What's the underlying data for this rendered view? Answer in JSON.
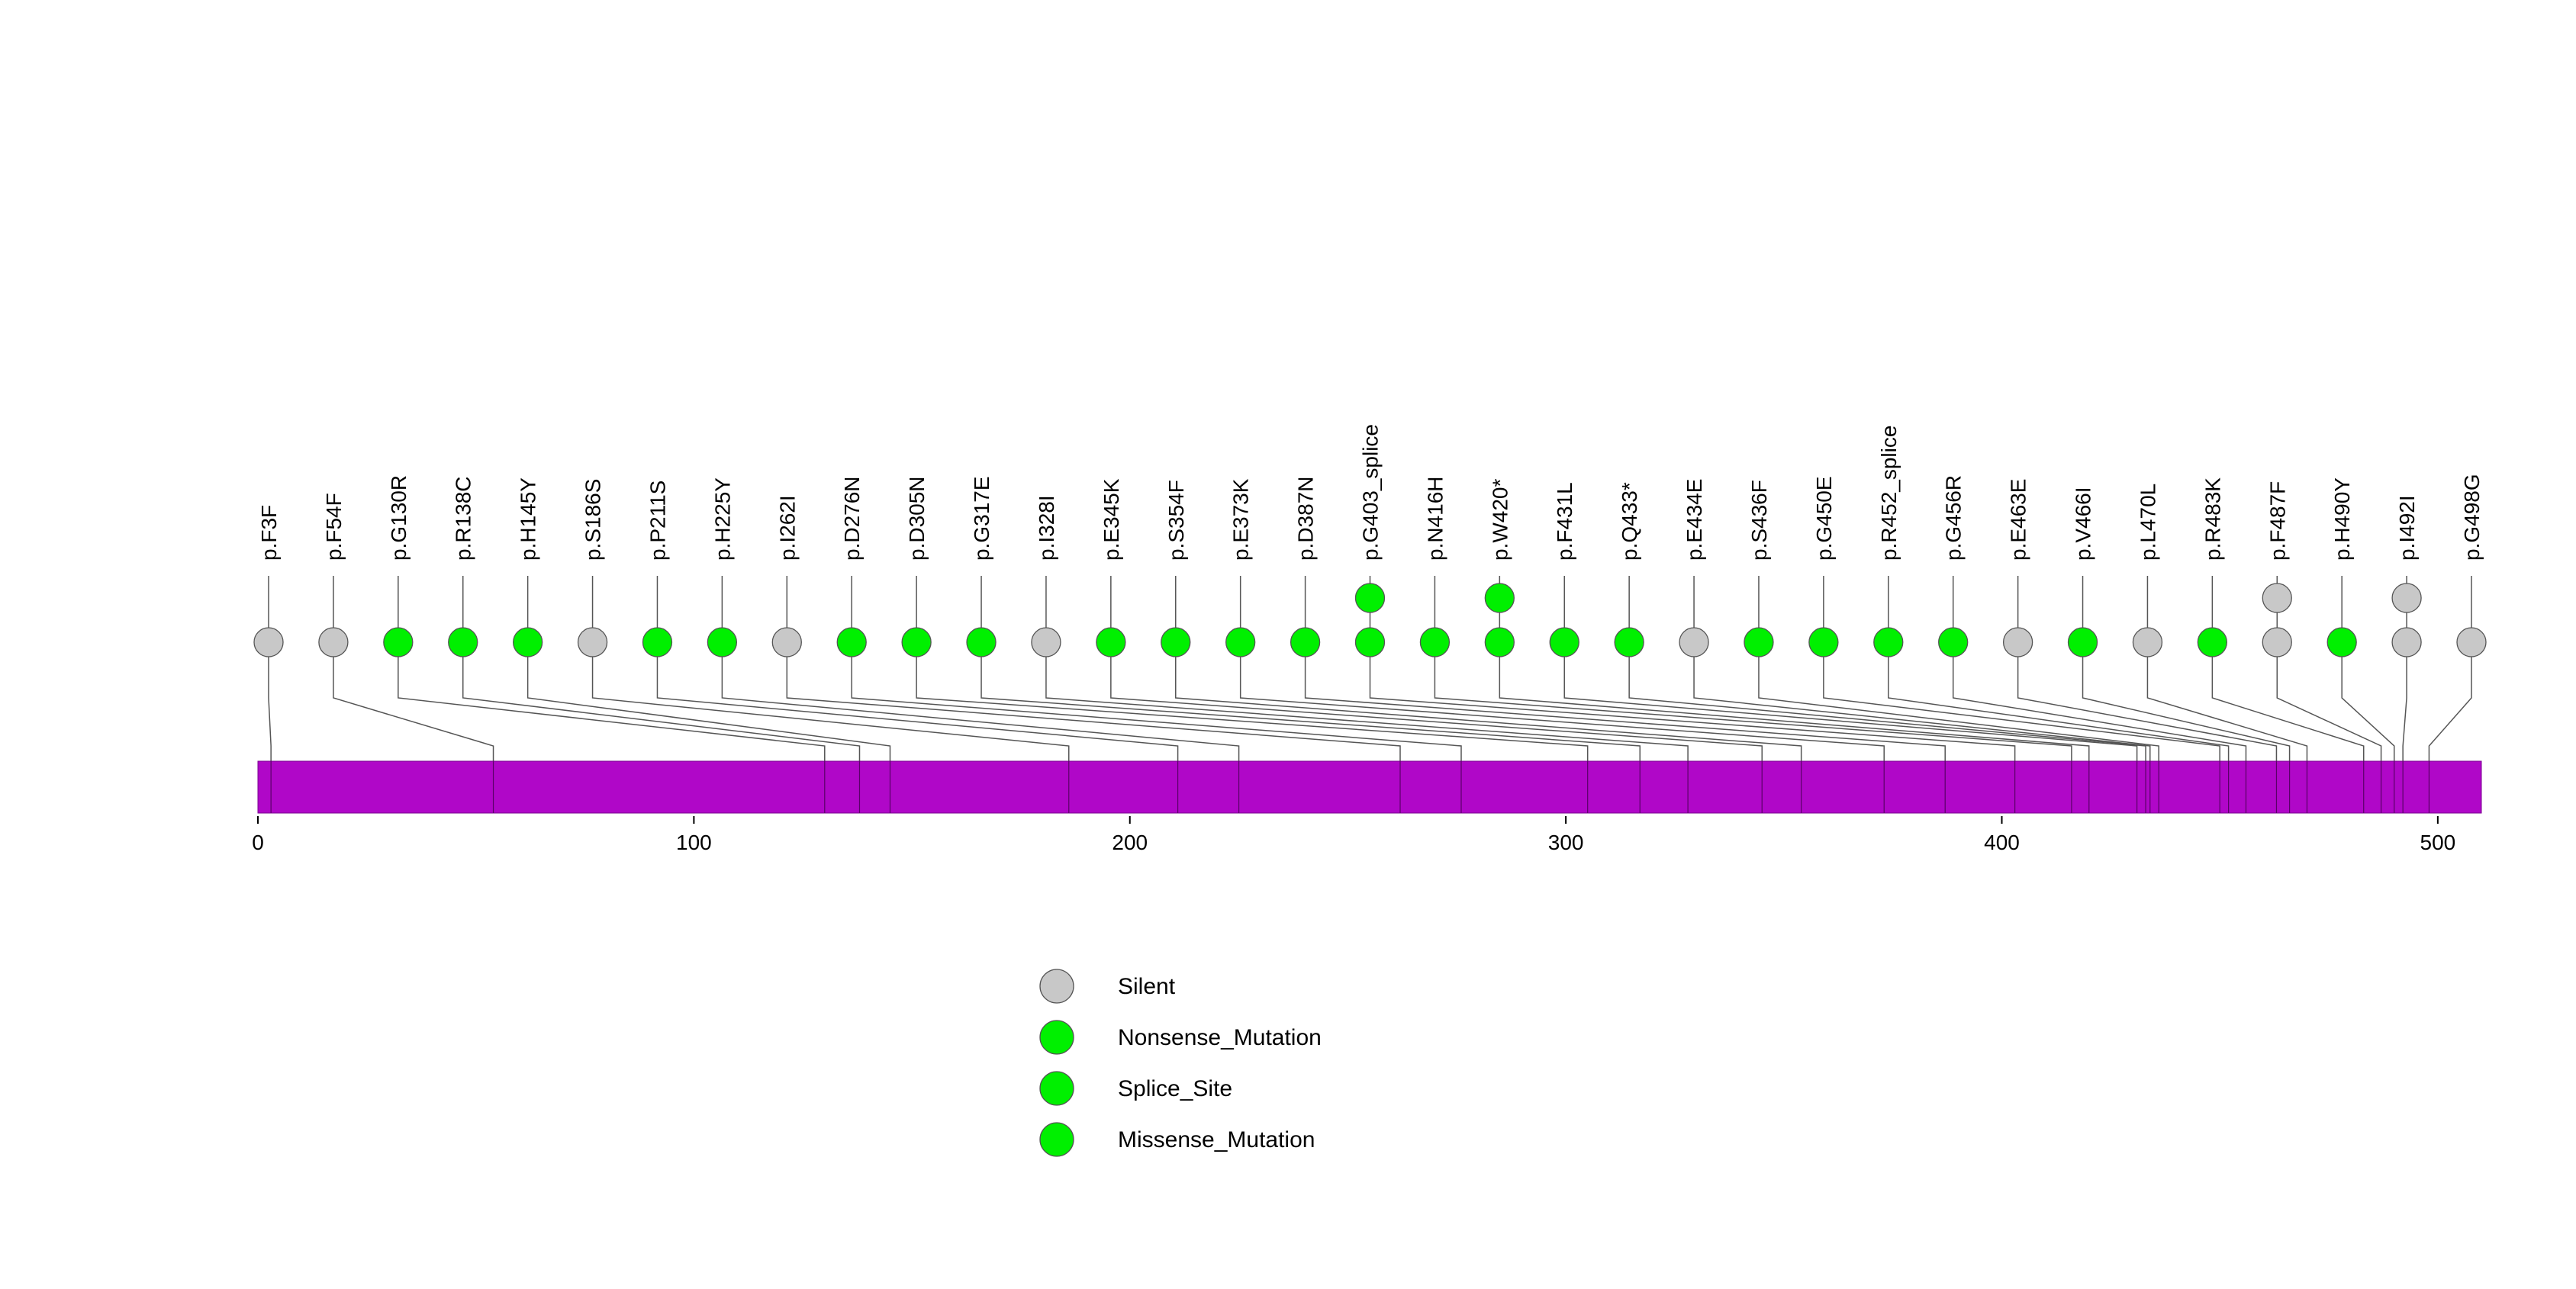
{
  "chart_data": {
    "type": "lollipop",
    "title": "",
    "protein_length": 510,
    "x_ticks": [
      0,
      100,
      200,
      300,
      400,
      500
    ],
    "xlim": [
      0,
      510
    ],
    "colors": {
      "domain": "#b007c8",
      "silent": "#c8c8c8",
      "green": "#00f000",
      "stem": "#555555"
    },
    "mutations": [
      {
        "label": "p.F3F",
        "position": 3,
        "classes": [
          "Silent"
        ]
      },
      {
        "label": "p.F54F",
        "position": 54,
        "classes": [
          "Silent"
        ]
      },
      {
        "label": "p.G130R",
        "position": 130,
        "classes": [
          "Missense_Mutation"
        ]
      },
      {
        "label": "p.R138C",
        "position": 138,
        "classes": [
          "Missense_Mutation"
        ]
      },
      {
        "label": "p.H145Y",
        "position": 145,
        "classes": [
          "Missense_Mutation"
        ]
      },
      {
        "label": "p.S186S",
        "position": 186,
        "classes": [
          "Silent"
        ]
      },
      {
        "label": "p.P211S",
        "position": 211,
        "classes": [
          "Missense_Mutation"
        ]
      },
      {
        "label": "p.H225Y",
        "position": 225,
        "classes": [
          "Missense_Mutation"
        ]
      },
      {
        "label": "p.I262I",
        "position": 262,
        "classes": [
          "Silent"
        ]
      },
      {
        "label": "p.D276N",
        "position": 276,
        "classes": [
          "Missense_Mutation"
        ]
      },
      {
        "label": "p.D305N",
        "position": 305,
        "classes": [
          "Missense_Mutation"
        ]
      },
      {
        "label": "p.G317E",
        "position": 317,
        "classes": [
          "Missense_Mutation"
        ]
      },
      {
        "label": "p.I328I",
        "position": 328,
        "classes": [
          "Silent"
        ]
      },
      {
        "label": "p.E345K",
        "position": 345,
        "classes": [
          "Missense_Mutation"
        ]
      },
      {
        "label": "p.S354F",
        "position": 354,
        "classes": [
          "Missense_Mutation"
        ]
      },
      {
        "label": "p.E373K",
        "position": 373,
        "classes": [
          "Missense_Mutation"
        ]
      },
      {
        "label": "p.D387N",
        "position": 387,
        "classes": [
          "Missense_Mutation"
        ]
      },
      {
        "label": "p.G403_splice",
        "position": 403,
        "classes": [
          "Splice_Site",
          "Splice_Site"
        ]
      },
      {
        "label": "p.N416H",
        "position": 416,
        "classes": [
          "Missense_Mutation"
        ]
      },
      {
        "label": "p.W420*",
        "position": 420,
        "classes": [
          "Nonsense_Mutation",
          "Nonsense_Mutation"
        ]
      },
      {
        "label": "p.F431L",
        "position": 431,
        "classes": [
          "Missense_Mutation"
        ]
      },
      {
        "label": "p.Q433*",
        "position": 433,
        "classes": [
          "Nonsense_Mutation"
        ]
      },
      {
        "label": "p.E434E",
        "position": 434,
        "classes": [
          "Silent"
        ]
      },
      {
        "label": "p.S436F",
        "position": 436,
        "classes": [
          "Missense_Mutation"
        ]
      },
      {
        "label": "p.G450E",
        "position": 450,
        "classes": [
          "Missense_Mutation"
        ]
      },
      {
        "label": "p.R452_splice",
        "position": 452,
        "classes": [
          "Splice_Site"
        ]
      },
      {
        "label": "p.G456R",
        "position": 456,
        "classes": [
          "Missense_Mutation"
        ]
      },
      {
        "label": "p.E463E",
        "position": 463,
        "classes": [
          "Silent"
        ]
      },
      {
        "label": "p.V466I",
        "position": 466,
        "classes": [
          "Missense_Mutation"
        ]
      },
      {
        "label": "p.L470L",
        "position": 470,
        "classes": [
          "Silent"
        ]
      },
      {
        "label": "p.R483K",
        "position": 483,
        "classes": [
          "Missense_Mutation"
        ]
      },
      {
        "label": "p.F487F",
        "position": 487,
        "classes": [
          "Silent",
          "Silent"
        ]
      },
      {
        "label": "p.H490Y",
        "position": 490,
        "classes": [
          "Missense_Mutation"
        ]
      },
      {
        "label": "p.I492I",
        "position": 492,
        "classes": [
          "Silent",
          "Silent"
        ]
      },
      {
        "label": "p.G498G",
        "position": 498,
        "classes": [
          "Silent"
        ]
      }
    ],
    "legend": [
      {
        "label": "Silent",
        "color": "#c8c8c8"
      },
      {
        "label": "Nonsense_Mutation",
        "color": "#00f000"
      },
      {
        "label": "Splice_Site",
        "color": "#00f000"
      },
      {
        "label": "Missense_Mutation",
        "color": "#00f000"
      }
    ]
  }
}
